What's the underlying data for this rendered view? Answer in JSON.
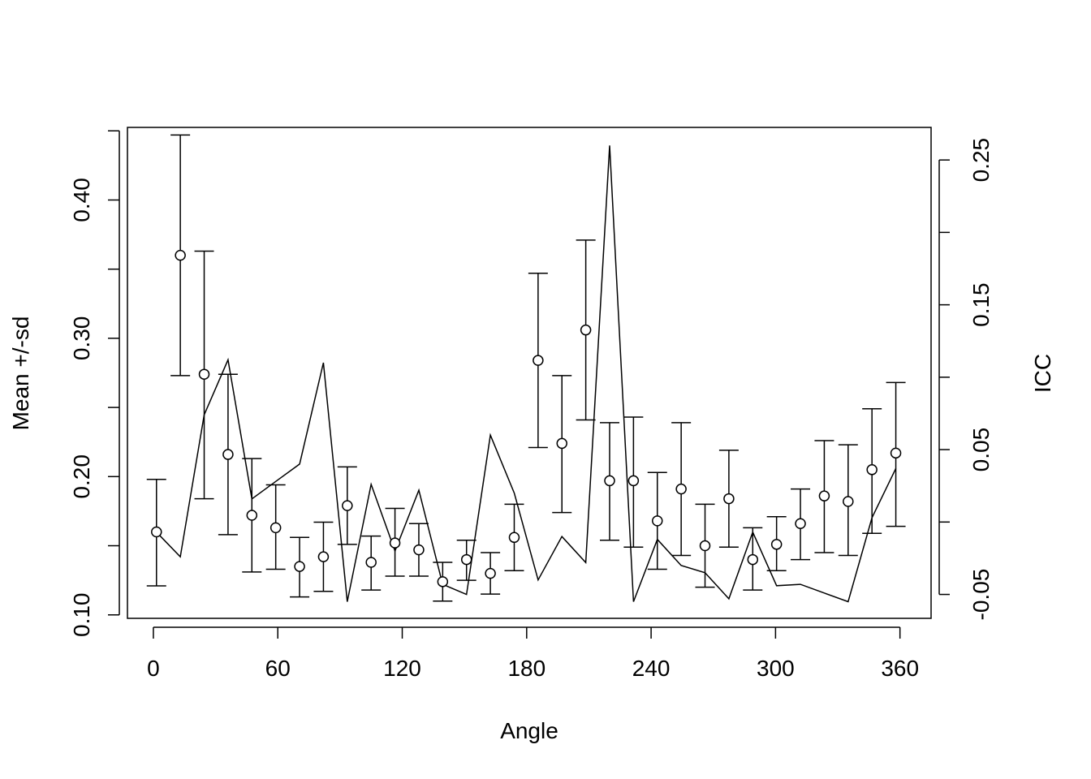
{
  "chart_data": {
    "type": "scatter",
    "title": "",
    "xlabel": "Angle",
    "ylabel": "Mean +/-sd",
    "y2label": "ICC",
    "xlim": [
      -12.5,
      375
    ],
    "ylim": [
      0.0975,
      0.4525
    ],
    "y2lim": [
      -0.0665,
      0.2725
    ],
    "x_ticks": [
      0,
      60,
      120,
      180,
      240,
      300,
      360
    ],
    "y_ticks": [
      0.1,
      0.2,
      0.3,
      0.4
    ],
    "y_ticks_minor": [
      0.15,
      0.25,
      0.35,
      0.45
    ],
    "y2_ticks": [
      -0.05,
      0.05,
      0.15,
      0.25
    ],
    "y2_ticks_minor": [
      0.0,
      0.1,
      0.2
    ],
    "series": [
      {
        "name": "Mean +/-sd",
        "style": "points-with-errorbars",
        "x": [
          1.5,
          13,
          24.5,
          36,
          47.5,
          59,
          70.5,
          82,
          93.5,
          105,
          116.5,
          128,
          139.5,
          151,
          162.5,
          174,
          185.5,
          197,
          208.5,
          220,
          231.5,
          243,
          254.5,
          266,
          277.5,
          289,
          300.5,
          312,
          323.5,
          335,
          346.5,
          358
        ],
        "mean": [
          0.16,
          0.36,
          0.274,
          0.216,
          0.172,
          0.163,
          0.135,
          0.142,
          0.179,
          0.138,
          0.152,
          0.147,
          0.124,
          0.14,
          0.13,
          0.156,
          0.284,
          0.224,
          0.306,
          0.197,
          0.197,
          0.168,
          0.191,
          0.15,
          0.184,
          0.14,
          0.151,
          0.166,
          0.186,
          0.182,
          0.205,
          0.217
        ],
        "lower": [
          0.121,
          0.273,
          0.184,
          0.158,
          0.131,
          0.133,
          0.113,
          0.117,
          0.151,
          0.118,
          0.128,
          0.128,
          0.11,
          0.125,
          0.115,
          0.132,
          0.221,
          0.174,
          0.241,
          0.154,
          0.149,
          0.133,
          0.143,
          0.12,
          0.149,
          0.118,
          0.132,
          0.14,
          0.145,
          0.143,
          0.159,
          0.164
        ],
        "upper": [
          0.198,
          0.447,
          0.363,
          0.274,
          0.213,
          0.194,
          0.156,
          0.167,
          0.207,
          0.157,
          0.177,
          0.166,
          0.138,
          0.154,
          0.145,
          0.18,
          0.347,
          0.273,
          0.371,
          0.239,
          0.243,
          0.203,
          0.239,
          0.18,
          0.219,
          0.163,
          0.171,
          0.191,
          0.226,
          0.223,
          0.249,
          0.268
        ]
      },
      {
        "name": "ICC",
        "style": "line",
        "axis": "right",
        "x": [
          1.5,
          13,
          24.5,
          36,
          47.5,
          59,
          70.5,
          82,
          93.5,
          105,
          116.5,
          128,
          139.5,
          151,
          162.5,
          174,
          185.5,
          197,
          208.5,
          220,
          231.5,
          243,
          254.5,
          266,
          277.5,
          289,
          300.5,
          312,
          323.5,
          335,
          346.5,
          358
        ],
        "y": [
          -0.007,
          -0.024,
          0.074,
          0.112,
          0.016,
          0.028,
          0.04,
          0.11,
          -0.055,
          0.026,
          -0.02,
          0.022,
          -0.043,
          -0.05,
          0.06,
          0.02,
          -0.04,
          -0.01,
          -0.028,
          0.26,
          -0.055,
          -0.012,
          -0.03,
          -0.035,
          -0.053,
          -0.007,
          -0.044,
          -0.043,
          -0.049,
          -0.055,
          0.003,
          0.037
        ]
      }
    ]
  }
}
